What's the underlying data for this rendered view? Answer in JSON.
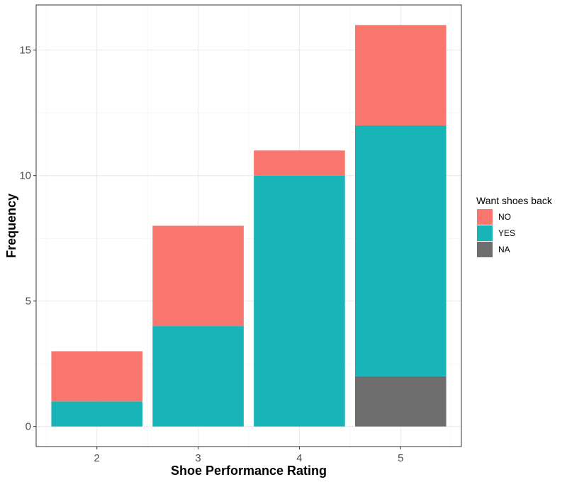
{
  "chart_data": {
    "type": "bar",
    "stacked": true,
    "categories": [
      "2",
      "3",
      "4",
      "5"
    ],
    "series": [
      {
        "name": "NO",
        "values": [
          2,
          4,
          1,
          4
        ],
        "color": "#f8766d"
      },
      {
        "name": "YES",
        "values": [
          1,
          4,
          10,
          10
        ],
        "color": "#19b4b8"
      },
      {
        "name": "NA",
        "values": [
          0,
          0,
          0,
          2
        ],
        "color": "#6e6e6e"
      }
    ],
    "stack_order_bottom_to_top": [
      "NA",
      "YES",
      "NO"
    ],
    "xlabel": "Shoe Performance Rating",
    "ylabel": "Frequency",
    "ylim": [
      0,
      16
    ],
    "yticks": [
      "0",
      "5",
      "10",
      "15"
    ],
    "legend": {
      "title": "Want shoes back",
      "position": "right",
      "entries": [
        "NO",
        "YES",
        "NA"
      ]
    },
    "grid": true
  }
}
